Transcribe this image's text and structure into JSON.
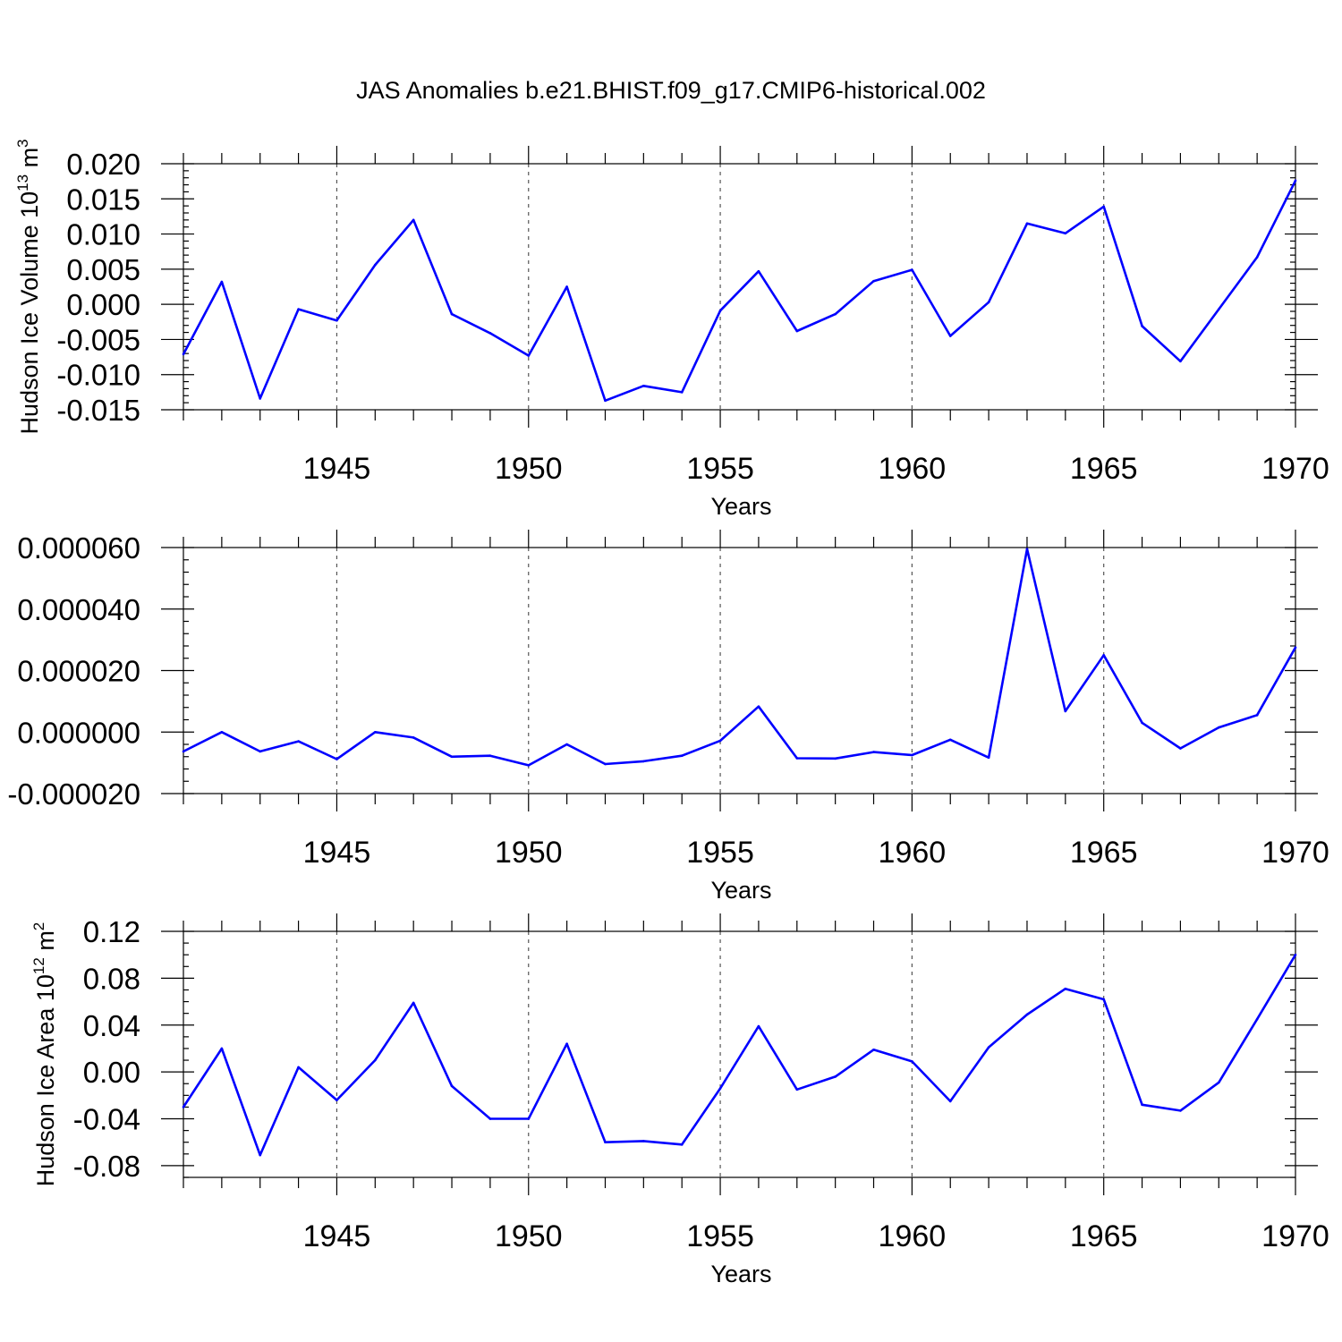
{
  "title": "JAS Anomalies b.e21.BHIST.f09_g17.CMIP6-historical.002",
  "colors": {
    "series": "#0000ff",
    "frame": "#000000",
    "grid": "#555555"
  },
  "chart_data": [
    {
      "type": "line",
      "ylabel": "Hudson Ice Volume 10",
      "ylabel_exp": "13",
      "ylabel_unit": " m",
      "ylabel_unit_exp": "3",
      "xlabel": "Years",
      "xlim": [
        1941,
        1970
      ],
      "ylim": [
        -0.015,
        0.02
      ],
      "yticks": [
        -0.015,
        -0.01,
        -0.005,
        0.0,
        0.005,
        0.01,
        0.015,
        0.02
      ],
      "yticklabels": [
        "-0.015",
        "-0.010",
        "-0.005",
        "0.000",
        "0.005",
        "0.010",
        "0.015",
        "0.020"
      ],
      "yminor": 0.001,
      "xticks": [
        1945,
        1950,
        1955,
        1960,
        1965,
        1970
      ],
      "xticklabels": [
        "1945",
        "1950",
        "1955",
        "1960",
        "1965",
        "1970"
      ],
      "grid_x": [
        1945,
        1950,
        1955,
        1960,
        1965
      ],
      "x": [
        1941,
        1942,
        1943,
        1944,
        1945,
        1946,
        1947,
        1948,
        1949,
        1950,
        1951,
        1952,
        1953,
        1954,
        1955,
        1956,
        1957,
        1958,
        1959,
        1960,
        1961,
        1962,
        1963,
        1964,
        1965,
        1966,
        1967,
        1968,
        1969,
        1970
      ],
      "values": [
        -0.0071,
        0.0032,
        -0.0134,
        -0.0007,
        -0.0023,
        0.0056,
        0.012,
        -0.0014,
        -0.0041,
        -0.0073,
        0.0025,
        -0.0137,
        -0.0116,
        -0.0125,
        -0.0009,
        0.0047,
        -0.0038,
        -0.0014,
        0.0033,
        0.0049,
        -0.0045,
        0.0003,
        0.0115,
        0.0101,
        0.0139,
        -0.0031,
        -0.0081,
        -0.0007,
        0.0067,
        0.0176
      ]
    },
    {
      "type": "line",
      "ylabel": "",
      "xlabel": "Years",
      "xlim": [
        1941,
        1970
      ],
      "ylim": [
        -2e-05,
        6e-05
      ],
      "yticks": [
        -2e-05,
        0.0,
        2e-05,
        4e-05,
        6e-05
      ],
      "yticklabels": [
        "-0.000020",
        "0.000000",
        "0.000020",
        "0.000040",
        "0.000060"
      ],
      "yminor": 4e-06,
      "xticks": [
        1945,
        1950,
        1955,
        1960,
        1965,
        1970
      ],
      "xticklabels": [
        "1945",
        "1950",
        "1955",
        "1960",
        "1965",
        "1970"
      ],
      "grid_x": [
        1945,
        1950,
        1955,
        1960,
        1965
      ],
      "x": [
        1941,
        1942,
        1943,
        1944,
        1945,
        1946,
        1947,
        1948,
        1949,
        1950,
        1951,
        1952,
        1953,
        1954,
        1955,
        1956,
        1957,
        1958,
        1959,
        1960,
        1961,
        1962,
        1963,
        1964,
        1965,
        1966,
        1967,
        1968,
        1969,
        1970
      ],
      "values": [
        -6.3e-06,
        0.0,
        -6.3e-06,
        -3e-06,
        -8.8e-06,
        0.0,
        -1.8e-06,
        -8e-06,
        -7.7e-06,
        -1.08e-05,
        -4e-06,
        -1.04e-05,
        -9.5e-06,
        -7.7e-06,
        -2.8e-06,
        8.3e-06,
        -8.5e-06,
        -8.6e-06,
        -6.5e-06,
        -7.5e-06,
        -2.5e-06,
        -8.3e-06,
        5.95e-05,
        6.8e-06,
        2.5e-05,
        3e-06,
        -5.3e-06,
        1.5e-06,
        5.5e-06,
        2.75e-05
      ]
    },
    {
      "type": "line",
      "ylabel": "Hudson Ice Area 10",
      "ylabel_exp": "12",
      "ylabel_unit": " m",
      "ylabel_unit_exp": "2",
      "xlabel": "Years",
      "xlim": [
        1941,
        1970
      ],
      "ylim": [
        -0.09,
        0.12
      ],
      "yticks": [
        -0.08,
        -0.04,
        0.0,
        0.04,
        0.08,
        0.12
      ],
      "yticklabels": [
        "-0.08",
        "-0.04",
        "0.00",
        "0.04",
        "0.08",
        "0.12"
      ],
      "yminor": 0.01,
      "xticks": [
        1945,
        1950,
        1955,
        1960,
        1965,
        1970
      ],
      "xticklabels": [
        "1945",
        "1950",
        "1955",
        "1960",
        "1965",
        "1970"
      ],
      "grid_x": [
        1945,
        1950,
        1955,
        1960,
        1965
      ],
      "x": [
        1941,
        1942,
        1943,
        1944,
        1945,
        1946,
        1947,
        1948,
        1949,
        1950,
        1951,
        1952,
        1953,
        1954,
        1955,
        1956,
        1957,
        1958,
        1959,
        1960,
        1961,
        1962,
        1963,
        1964,
        1965,
        1966,
        1967,
        1968,
        1969,
        1970
      ],
      "values": [
        -0.03,
        0.02,
        -0.071,
        0.004,
        -0.024,
        0.01,
        0.059,
        -0.012,
        -0.04,
        -0.04,
        0.024,
        -0.06,
        -0.059,
        -0.062,
        -0.014,
        0.039,
        -0.015,
        -0.004,
        0.019,
        0.009,
        -0.025,
        0.021,
        0.049,
        0.071,
        0.062,
        -0.028,
        -0.033,
        -0.009,
        0.045,
        0.1
      ]
    }
  ]
}
